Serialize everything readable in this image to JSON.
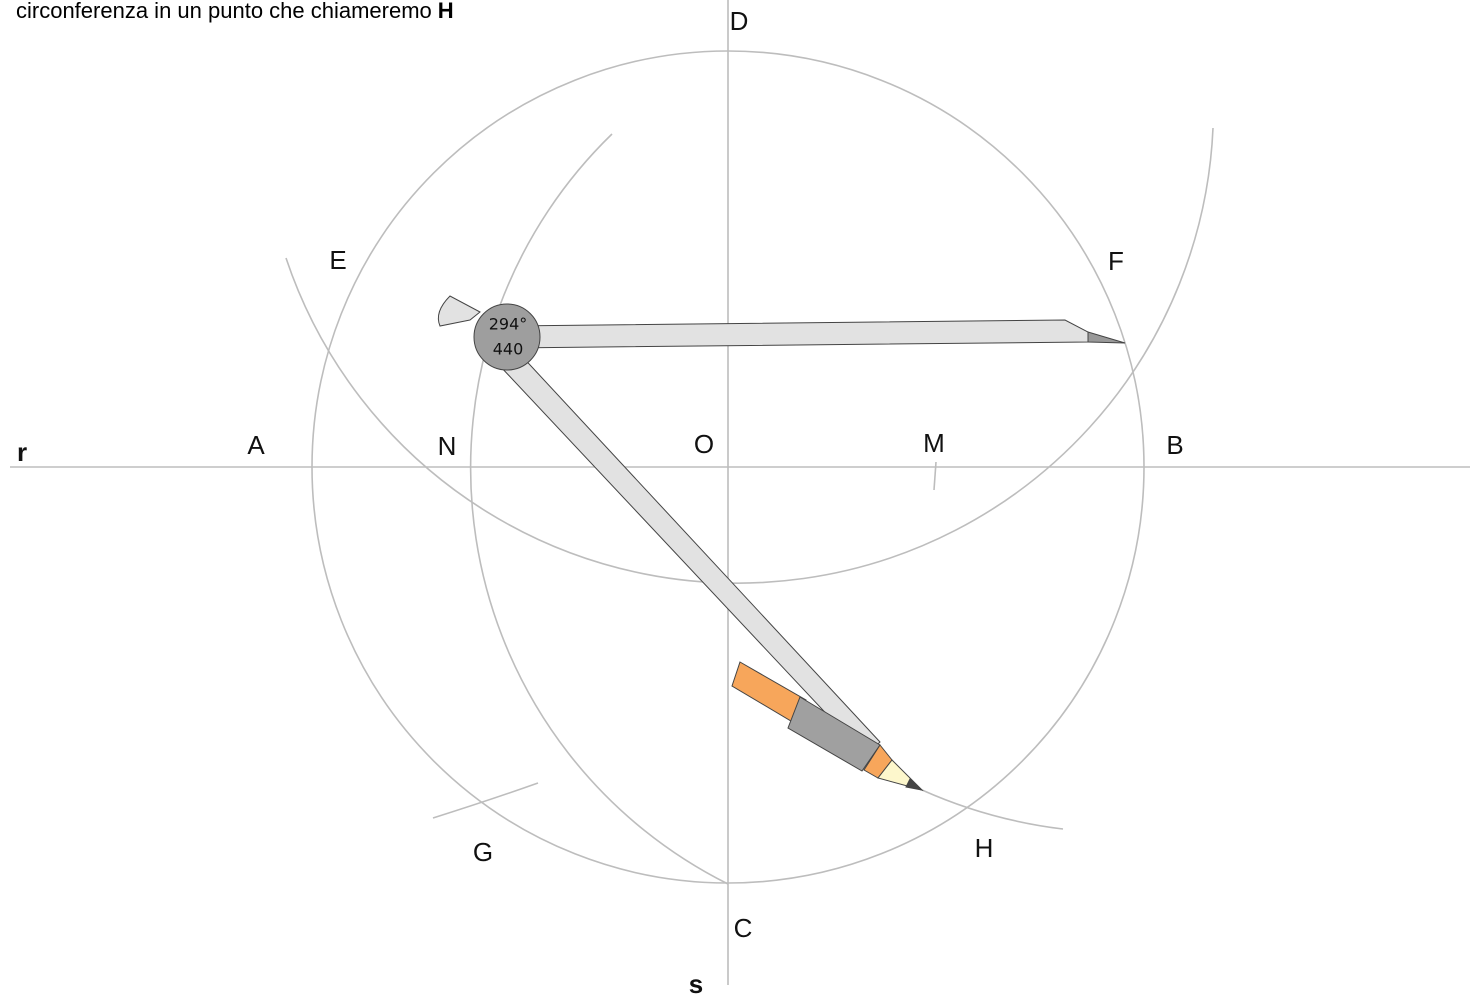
{
  "instruction": {
    "text": "circonferenza in un punto che chiameremo",
    "bold": "H"
  },
  "labels": {
    "D": "D",
    "E": "E",
    "F": "F",
    "r": "r",
    "A": "A",
    "N": "N",
    "O": "O",
    "M": "M",
    "B": "B",
    "G": "G",
    "H": "H",
    "C": "C",
    "s": "s"
  },
  "compass": {
    "angle": "294°",
    "radius": "440"
  }
}
